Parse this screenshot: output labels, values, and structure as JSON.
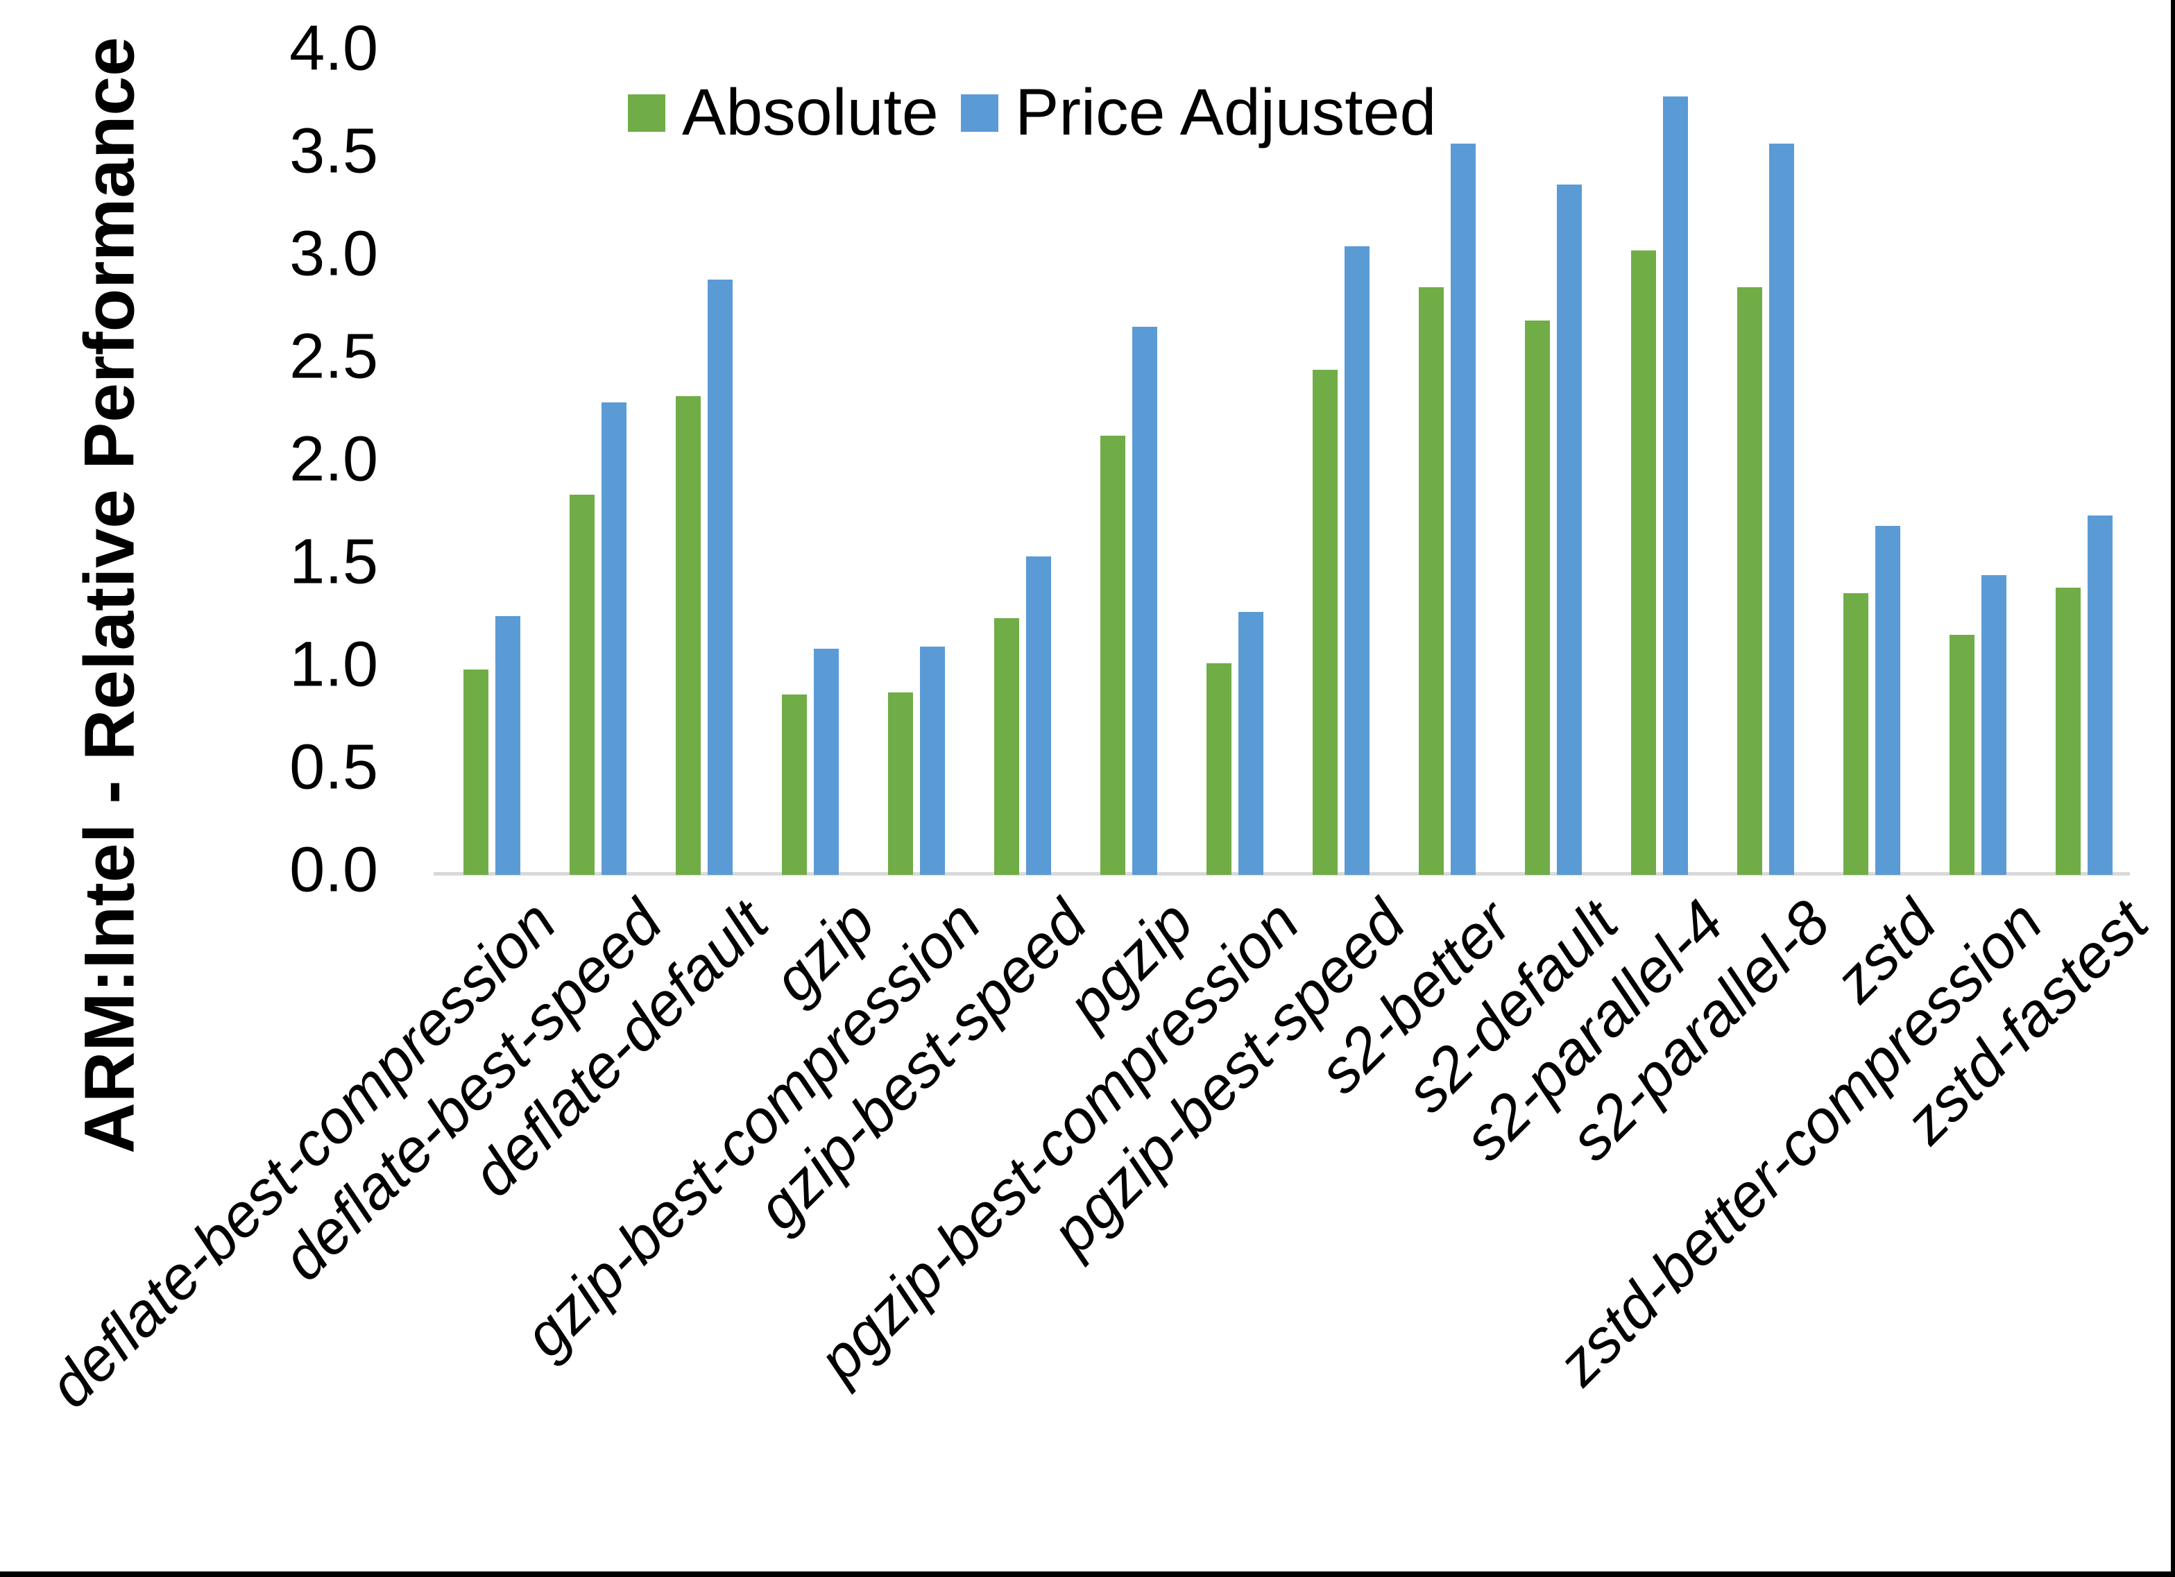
{
  "chart_data": {
    "type": "bar",
    "title": "",
    "xlabel": "",
    "ylabel": "ARM:Intel - Relative Performance",
    "ylim": [
      0.0,
      4.0
    ],
    "ytick_step": 0.5,
    "grid": false,
    "legend_position": "top-center",
    "categories": [
      "deflate-best-compression",
      "deflate-best-speed",
      "deflate-default",
      "gzip",
      "gzip-best-compression",
      "gzip-best-speed",
      "pgzip",
      "pgzip-best-compression",
      "pgzip-best-speed",
      "s2-better",
      "s2-default",
      "s2-parallel-4",
      "s2-parallel-8",
      "zstd",
      "zstd-better-compression",
      "zstd-fastest"
    ],
    "series": [
      {
        "name": "Absolute",
        "color": "#70AD47",
        "values": [
          1.0,
          1.85,
          2.33,
          0.88,
          0.89,
          1.25,
          2.14,
          1.03,
          2.46,
          2.86,
          2.7,
          3.04,
          2.86,
          1.37,
          1.17,
          1.4
        ]
      },
      {
        "name": "Price Adjusted",
        "color": "#5B9BD5",
        "values": [
          1.26,
          2.3,
          2.9,
          1.1,
          1.11,
          1.55,
          2.67,
          1.28,
          3.06,
          3.56,
          3.36,
          3.79,
          3.56,
          1.7,
          1.46,
          1.75
        ]
      }
    ]
  },
  "axes": {
    "y_title": "ARM:Intel - Relative Performance",
    "y_ticks": [
      "4.0",
      "3.5",
      "3.0",
      "2.5",
      "2.0",
      "1.5",
      "1.0",
      "0.5",
      "0.0"
    ]
  },
  "legend": {
    "items": [
      {
        "label": "Absolute",
        "color": "#70AD47"
      },
      {
        "label": "Price Adjusted",
        "color": "#5B9BD5"
      }
    ]
  },
  "colors": {
    "absolute_green": "#70AD47",
    "price_adjusted_blue": "#5B9BD5",
    "axis_line_gray": "#D9D9D9",
    "text_black": "#000000",
    "frame_black": "#000000"
  }
}
